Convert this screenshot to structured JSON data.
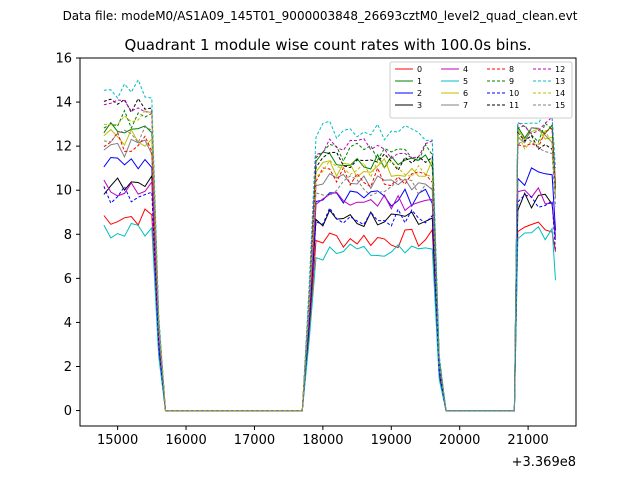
{
  "header": {
    "file_label": "Data file: modeM0/AS1A09_145T01_9000003848_26693cztM0_level2_quad_clean.evt"
  },
  "chart_data": {
    "type": "line",
    "title": "Quadrant 1 module wise count rates with 100.0s bins.",
    "xlabel": "",
    "ylabel": "",
    "x_offset_label": "+3.369e8",
    "xlim": [
      14450,
      21700
    ],
    "ylim": [
      -0.7,
      16
    ],
    "xticks": [
      15000,
      16000,
      17000,
      18000,
      19000,
      20000,
      21000
    ],
    "yticks": [
      0,
      2,
      4,
      6,
      8,
      10,
      12,
      14,
      16
    ],
    "grid": false,
    "legend_position": "top-right",
    "colors": [
      "#ff0000",
      "#008000",
      "#0000ff",
      "#000000",
      "#bf00bf",
      "#00bfbf",
      "#bfbf00",
      "#808080",
      "#ff0000",
      "#008000",
      "#0000ff",
      "#000000",
      "#bf00bf",
      "#00bfbf",
      "#bfbf00",
      "#808080"
    ],
    "dashed_from_index": 8,
    "segments": [
      {
        "start": 14800,
        "end": 15500
      },
      {
        "start": 17900,
        "end": 19600
      },
      {
        "start": 20850,
        "end": 21400
      }
    ],
    "gaps": [
      {
        "from": 15500,
        "down": [
          15600,
          15700
        ],
        "zero": [
          15700,
          17700
        ],
        "up": [
          17700,
          17800,
          17900
        ]
      },
      {
        "from": 19600,
        "down": [
          19700,
          19800
        ],
        "zero": [
          19800,
          20800
        ],
        "up": [
          20800,
          20850
        ]
      }
    ],
    "series": [
      {
        "name": "0",
        "levels": [
          8.8,
          7.8,
          8.4
        ]
      },
      {
        "name": "1",
        "levels": [
          12.7,
          11.4,
          12.6
        ]
      },
      {
        "name": "2",
        "levels": [
          11.3,
          9.6,
          10.6
        ]
      },
      {
        "name": "3",
        "levels": [
          10.2,
          8.8,
          9.5
        ]
      },
      {
        "name": "4",
        "levels": [
          10.1,
          9.5,
          9.8
        ]
      },
      {
        "name": "5",
        "levels": [
          8.2,
          7.1,
          8.0
        ]
      },
      {
        "name": "6",
        "levels": [
          12.4,
          11.0,
          12.4
        ]
      },
      {
        "name": "7",
        "levels": [
          11.9,
          10.4,
          12.4
        ]
      },
      {
        "name": "8",
        "levels": [
          12.2,
          10.6,
          12.4
        ]
      },
      {
        "name": "9",
        "levels": [
          13.2,
          11.7,
          12.6
        ]
      },
      {
        "name": "10",
        "levels": [
          9.8,
          8.8,
          9.6
        ]
      },
      {
        "name": "11",
        "levels": [
          13.8,
          11.3,
          12.2
        ]
      },
      {
        "name": "12",
        "levels": [
          13.8,
          11.9,
          13.0
        ]
      },
      {
        "name": "13",
        "levels": [
          14.6,
          12.7,
          13.3
        ]
      },
      {
        "name": "14",
        "levels": [
          13.2,
          10.9,
          12.3
        ]
      },
      {
        "name": "15",
        "levels": [
          12.6,
          10.2,
          12.1
        ]
      }
    ]
  }
}
